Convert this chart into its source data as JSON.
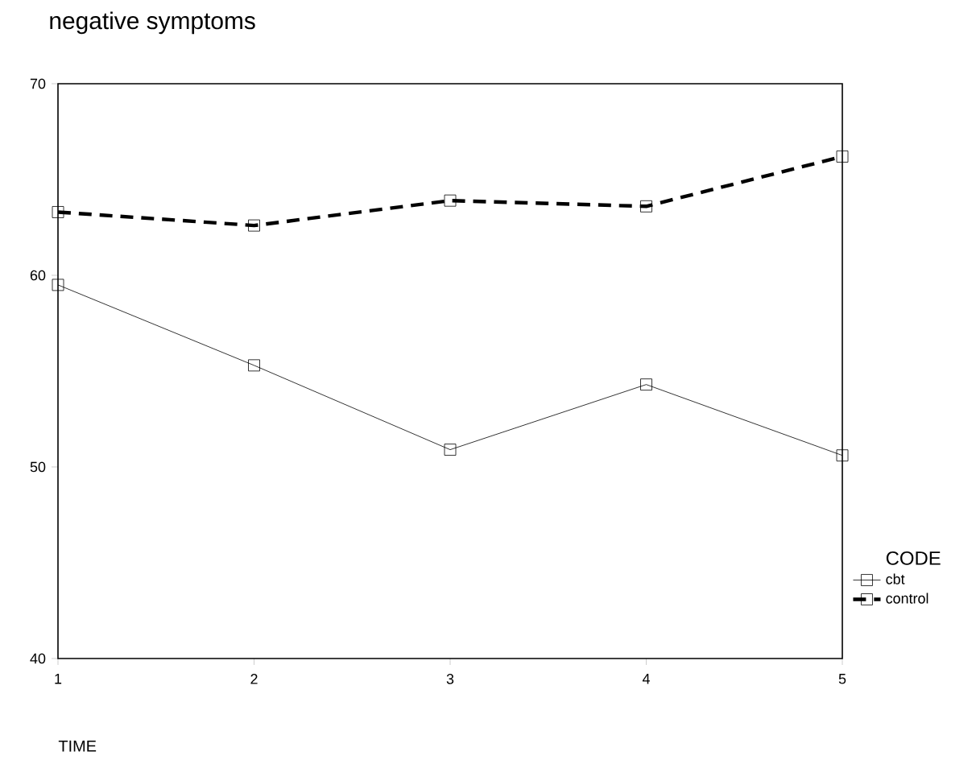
{
  "chart_data": {
    "type": "line",
    "title": "negative symptoms",
    "xlabel": "TIME",
    "legend_title": "CODE",
    "x": [
      1,
      2,
      3,
      4,
      5
    ],
    "series": [
      {
        "name": "cbt",
        "color": "#000000",
        "line_style": "solid",
        "values": [
          59.5,
          55.3,
          50.9,
          54.3,
          50.6
        ]
      },
      {
        "name": "control",
        "color": "#000000",
        "line_style": "dashed",
        "values": [
          63.3,
          62.6,
          63.9,
          63.6,
          66.2
        ]
      }
    ],
    "xlim": [
      1,
      5
    ],
    "xticks": [
      1,
      2,
      3,
      4,
      5
    ],
    "ylim": [
      40,
      70
    ],
    "yticks": [
      40,
      50,
      60,
      70
    ],
    "marker": "square",
    "legend": "right",
    "grid": false
  }
}
